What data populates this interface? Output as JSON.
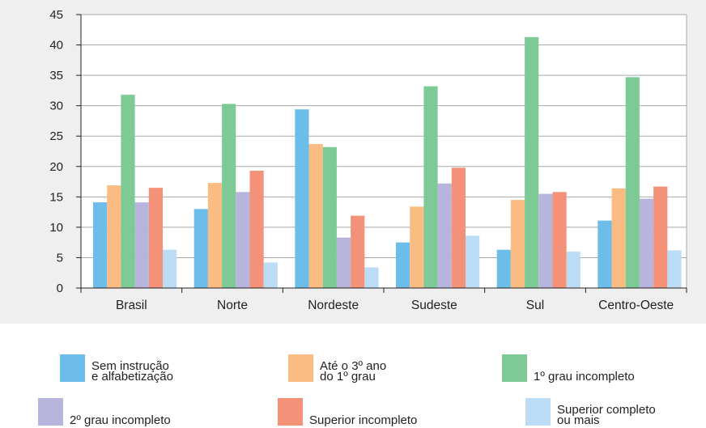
{
  "chart_data": {
    "type": "bar",
    "categories": [
      "Brasil",
      "Norte",
      "Nordeste",
      "Sudeste",
      "Sul",
      "Centro-Oeste"
    ],
    "series": [
      {
        "name": "Sem instrução\ne alfabetização",
        "color": "#6cbde9",
        "values": [
          14.1,
          13.0,
          29.4,
          7.5,
          6.3,
          11.1
        ]
      },
      {
        "name": "Até o 3º ano\ndo 1º grau",
        "color": "#fbbc83",
        "values": [
          16.9,
          17.3,
          23.7,
          13.4,
          14.5,
          16.4
        ]
      },
      {
        "name": "1º grau incompleto",
        "color": "#7dca96",
        "values": [
          31.8,
          30.3,
          23.2,
          33.2,
          41.3,
          34.7
        ]
      },
      {
        "name": "2º grau incompleto",
        "color": "#b8b5dc",
        "values": [
          14.1,
          15.8,
          8.3,
          17.2,
          15.5,
          14.7
        ]
      },
      {
        "name": "Superior incompleto",
        "color": "#f39279",
        "values": [
          16.5,
          19.3,
          11.9,
          19.8,
          15.8,
          16.7
        ]
      },
      {
        "name": "Superior completo\nou mais",
        "color": "#bcdcf5",
        "values": [
          6.3,
          4.2,
          3.4,
          8.6,
          6.0,
          6.2
        ]
      }
    ],
    "ylim": [
      0,
      45
    ],
    "yticks": [
      0,
      5,
      10,
      15,
      20,
      25,
      30,
      35,
      40,
      45
    ],
    "grid": true,
    "legend_position": "bottom"
  }
}
